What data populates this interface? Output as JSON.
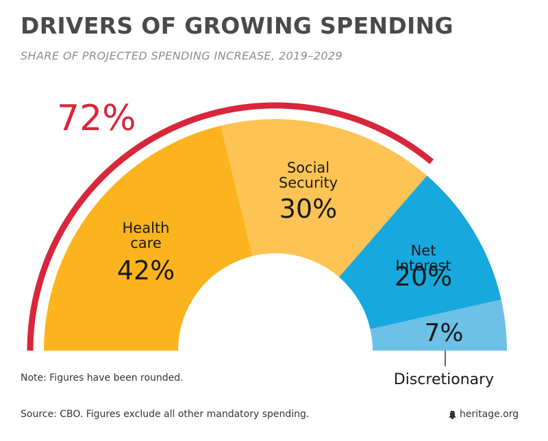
{
  "header": {
    "title": "DRIVERS OF GROWING SPENDING",
    "subtitle": "SHARE OF PROJECTED SPENDING INCREASE, 2019–2029"
  },
  "chart_data": {
    "type": "pie",
    "variant": "half-donut",
    "categories": [
      "Health care",
      "Social Security",
      "Net Interest",
      "Discretionary"
    ],
    "display_labels": [
      [
        "Health",
        "care"
      ],
      [
        "Social",
        "Security"
      ],
      [
        "Net",
        "Interest"
      ],
      [
        "Discretionary"
      ]
    ],
    "values": [
      42,
      30,
      20,
      7
    ],
    "value_labels": [
      "42%",
      "30%",
      "20%",
      "7%"
    ],
    "colors": [
      "#fbb41e",
      "#fdc455",
      "#17a9dd",
      "#6dc0e6"
    ],
    "highlight": {
      "label": "72%",
      "covers": [
        "Health care",
        "Social Security"
      ],
      "value": 72,
      "color": "#d8263a"
    }
  },
  "footer": {
    "note": "Note: Figures have been rounded.",
    "source": "Source: CBO. Figures exclude all other mandatory spending.",
    "brand": "heritage.org",
    "brand_icon": "bell-icon"
  }
}
